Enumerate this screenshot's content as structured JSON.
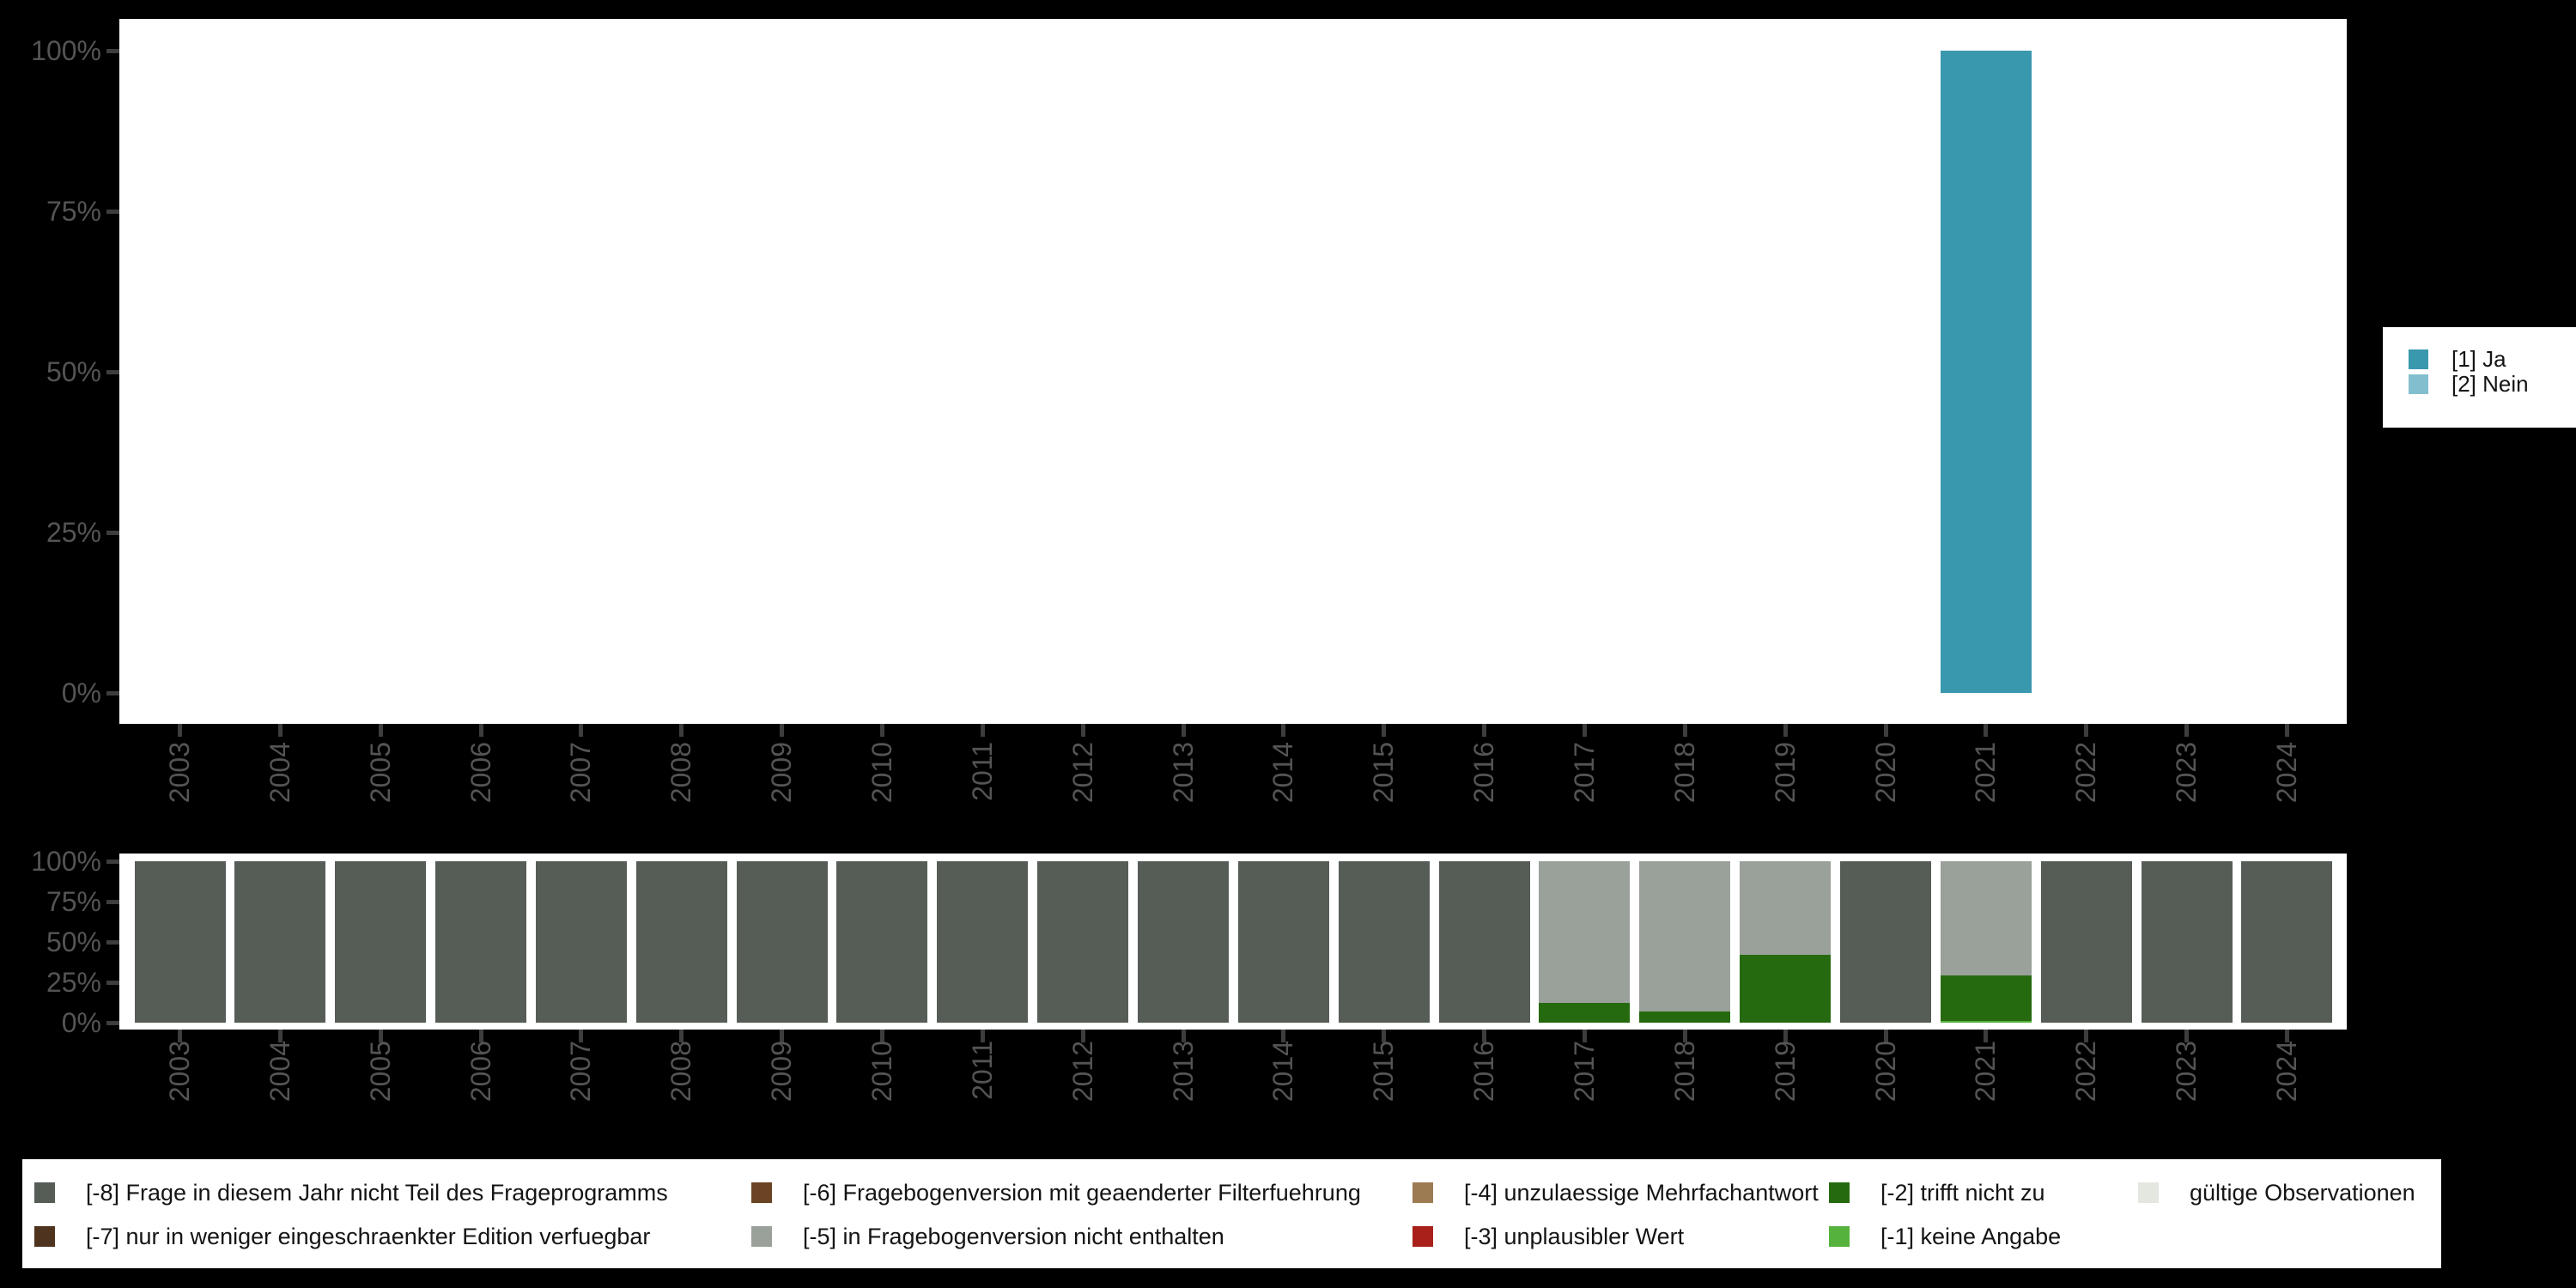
{
  "app_title": "Variable availability chart",
  "colors": {
    "background": "#000000",
    "plot_background": "#ffffff",
    "axis_text": "#545454",
    "tick_mark": "#3d3d3d",
    "legend_text": "#141414",
    "ja": "#3a98ae",
    "nein": "#82bfce",
    "code_-8": "#565d57",
    "code_-7": "#4e341e",
    "code_-6": "#6b4423",
    "code_-5": "#9aa09a",
    "code_-4": "#9d7b52",
    "code_-3": "#a9201a",
    "code_-2": "#266a10",
    "code_-1": "#55b23d",
    "code_valid": "#e3e7e0"
  },
  "axis": {
    "y_tick_labels": [
      "100%",
      "75%",
      "50%",
      "25%",
      "0%"
    ],
    "years": [
      "2003",
      "2004",
      "2005",
      "2006",
      "2007",
      "2008",
      "2009",
      "2010",
      "2011",
      "2012",
      "2013",
      "2014",
      "2015",
      "2016",
      "2017",
      "2018",
      "2019",
      "2020",
      "2021",
      "2022",
      "2023",
      "2024"
    ]
  },
  "top_chart": {
    "legend_items": [
      {
        "label": "[1] Ja",
        "color": "#3a98ae"
      },
      {
        "label": "[2] Nein",
        "color": "#82bfce"
      }
    ],
    "bars": [
      {
        "year": "2021",
        "segments": [
          {
            "label": "[1] Ja",
            "pct": 100,
            "color": "#3a98ae"
          }
        ]
      }
    ]
  },
  "bottom_chart": {
    "bars": [
      {
        "year": "2003",
        "segments": [
          {
            "code": "-8",
            "pct": 100
          }
        ]
      },
      {
        "year": "2004",
        "segments": [
          {
            "code": "-8",
            "pct": 100
          }
        ]
      },
      {
        "year": "2005",
        "segments": [
          {
            "code": "-8",
            "pct": 100
          }
        ]
      },
      {
        "year": "2006",
        "segments": [
          {
            "code": "-8",
            "pct": 100
          }
        ]
      },
      {
        "year": "2007",
        "segments": [
          {
            "code": "-8",
            "pct": 100
          }
        ]
      },
      {
        "year": "2008",
        "segments": [
          {
            "code": "-8",
            "pct": 100
          }
        ]
      },
      {
        "year": "2009",
        "segments": [
          {
            "code": "-8",
            "pct": 100
          }
        ]
      },
      {
        "year": "2010",
        "segments": [
          {
            "code": "-8",
            "pct": 100
          }
        ]
      },
      {
        "year": "2011",
        "segments": [
          {
            "code": "-8",
            "pct": 100
          }
        ]
      },
      {
        "year": "2012",
        "segments": [
          {
            "code": "-8",
            "pct": 100
          }
        ]
      },
      {
        "year": "2013",
        "segments": [
          {
            "code": "-8",
            "pct": 100
          }
        ]
      },
      {
        "year": "2014",
        "segments": [
          {
            "code": "-8",
            "pct": 100
          }
        ]
      },
      {
        "year": "2015",
        "segments": [
          {
            "code": "-8",
            "pct": 100
          }
        ]
      },
      {
        "year": "2016",
        "segments": [
          {
            "code": "-8",
            "pct": 100
          }
        ]
      },
      {
        "year": "2017",
        "segments": [
          {
            "code": "-2",
            "pct": 12
          },
          {
            "code": "-5",
            "pct": 88
          }
        ]
      },
      {
        "year": "2018",
        "segments": [
          {
            "code": "-2",
            "pct": 7
          },
          {
            "code": "-5",
            "pct": 93
          }
        ]
      },
      {
        "year": "2019",
        "segments": [
          {
            "code": "-2",
            "pct": 42
          },
          {
            "code": "-5",
            "pct": 58
          }
        ]
      },
      {
        "year": "2020",
        "segments": [
          {
            "code": "-8",
            "pct": 100
          }
        ]
      },
      {
        "year": "2021",
        "segments": [
          {
            "code": "-1",
            "pct": 1
          },
          {
            "code": "-2",
            "pct": 28
          },
          {
            "code": "-5",
            "pct": 71
          }
        ]
      },
      {
        "year": "2022",
        "segments": [
          {
            "code": "-8",
            "pct": 100
          }
        ]
      },
      {
        "year": "2023",
        "segments": [
          {
            "code": "-8",
            "pct": 100
          }
        ]
      },
      {
        "year": "2024",
        "segments": [
          {
            "code": "-8",
            "pct": 100
          }
        ]
      }
    ]
  },
  "missing_legend": {
    "items": [
      {
        "label": "[-8] Frage in diesem Jahr nicht Teil des Frageprogramms",
        "code": "-8",
        "col": 0,
        "row": 0
      },
      {
        "label": "[-7] nur in weniger eingeschraenkter Edition verfuegbar",
        "code": "-7",
        "col": 0,
        "row": 1
      },
      {
        "label": "[-6] Fragebogenversion mit geaenderter Filterfuehrung",
        "code": "-6",
        "col": 1,
        "row": 0
      },
      {
        "label": "[-5] in Fragebogenversion nicht enthalten",
        "code": "-5",
        "col": 1,
        "row": 1
      },
      {
        "label": "[-4] unzulaessige Mehrfachantwort",
        "code": "-4",
        "col": 2,
        "row": 0
      },
      {
        "label": "[-3] unplausibler Wert",
        "code": "-3",
        "col": 2,
        "row": 1
      },
      {
        "label": "[-2] trifft nicht zu",
        "code": "-2",
        "col": 3,
        "row": 0
      },
      {
        "label": "[-1] keine Angabe",
        "code": "-1",
        "col": 3,
        "row": 1
      },
      {
        "label": "gültige Observationen",
        "code": "valid",
        "col": 4,
        "row": 0
      }
    ]
  },
  "chart_data": [
    {
      "type": "bar",
      "stacked": true,
      "title": "",
      "categories": [
        "2003",
        "2004",
        "2005",
        "2006",
        "2007",
        "2008",
        "2009",
        "2010",
        "2011",
        "2012",
        "2013",
        "2014",
        "2015",
        "2016",
        "2017",
        "2018",
        "2019",
        "2020",
        "2021",
        "2022",
        "2023",
        "2024"
      ],
      "series": [
        {
          "name": "[1] Ja",
          "values": [
            0,
            0,
            0,
            0,
            0,
            0,
            0,
            0,
            0,
            0,
            0,
            0,
            0,
            0,
            0,
            0,
            0,
            0,
            100,
            0,
            0,
            0
          ]
        },
        {
          "name": "[2] Nein",
          "values": [
            0,
            0,
            0,
            0,
            0,
            0,
            0,
            0,
            0,
            0,
            0,
            0,
            0,
            0,
            0,
            0,
            0,
            0,
            0,
            0,
            0,
            0
          ]
        }
      ],
      "xlabel": "",
      "ylabel": "",
      "ylim": [
        0,
        100
      ],
      "y_ticks": [
        "0%",
        "25%",
        "50%",
        "75%",
        "100%"
      ],
      "grid": false,
      "legend_position": "right"
    },
    {
      "type": "bar",
      "stacked": true,
      "title": "",
      "categories": [
        "2003",
        "2004",
        "2005",
        "2006",
        "2007",
        "2008",
        "2009",
        "2010",
        "2011",
        "2012",
        "2013",
        "2014",
        "2015",
        "2016",
        "2017",
        "2018",
        "2019",
        "2020",
        "2021",
        "2022",
        "2023",
        "2024"
      ],
      "series": [
        {
          "name": "[-8] Frage in diesem Jahr nicht Teil des Frageprogramms",
          "values": [
            100,
            100,
            100,
            100,
            100,
            100,
            100,
            100,
            100,
            100,
            100,
            100,
            100,
            100,
            0,
            0,
            0,
            100,
            0,
            100,
            100,
            100
          ]
        },
        {
          "name": "[-5] in Fragebogenversion nicht enthalten",
          "values": [
            0,
            0,
            0,
            0,
            0,
            0,
            0,
            0,
            0,
            0,
            0,
            0,
            0,
            0,
            88,
            93,
            58,
            0,
            71,
            0,
            0,
            0
          ]
        },
        {
          "name": "[-2] trifft nicht zu",
          "values": [
            0,
            0,
            0,
            0,
            0,
            0,
            0,
            0,
            0,
            0,
            0,
            0,
            0,
            0,
            12,
            7,
            42,
            0,
            28,
            0,
            0,
            0
          ]
        },
        {
          "name": "[-1] keine Angabe",
          "values": [
            0,
            0,
            0,
            0,
            0,
            0,
            0,
            0,
            0,
            0,
            0,
            0,
            0,
            0,
            0,
            0,
            0,
            0,
            1,
            0,
            0,
            0
          ]
        }
      ],
      "xlabel": "",
      "ylabel": "",
      "ylim": [
        0,
        100
      ],
      "y_ticks": [
        "0%",
        "25%",
        "50%",
        "75%",
        "100%"
      ],
      "grid": false,
      "legend_position": "bottom"
    }
  ]
}
